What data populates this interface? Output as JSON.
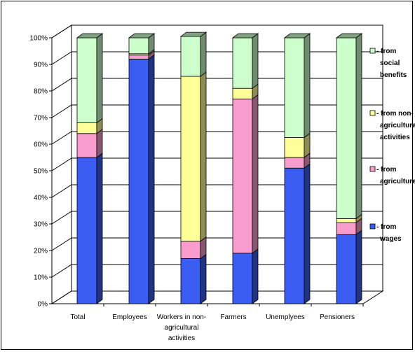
{
  "chart_data": {
    "type": "bar",
    "stacked": true,
    "percent": true,
    "three_d": true,
    "categories": [
      "Total",
      "Employees",
      "Workers in non-agricultural activities",
      "Farmers",
      "Unemplyees",
      "Pensioners"
    ],
    "category_label_lines": [
      [
        "Total"
      ],
      [
        "Employees"
      ],
      [
        "Workers in non-",
        "agricultural",
        "activities"
      ],
      [
        "Farmers"
      ],
      [
        "Unemplyees"
      ],
      [
        "Pensioners"
      ]
    ],
    "series": [
      {
        "name": "- from wages",
        "legend_lines": [
          "- from",
          "wages"
        ],
        "color": "#3a5cf0",
        "values": [
          55,
          92,
          17,
          19,
          51,
          26
        ]
      },
      {
        "name": "- from agriculture",
        "legend_lines": [
          "- from",
          "agriculture"
        ],
        "color": "#f79ccd",
        "values": [
          9,
          1.5,
          6.5,
          58,
          4,
          4.5
        ]
      },
      {
        "name": "- from non-agricultural activities",
        "legend_lines": [
          "- from non-",
          "agricultural",
          "activities"
        ],
        "color": "#ffff99",
        "values": [
          4,
          0.5,
          62,
          4,
          7.5,
          1.5
        ]
      },
      {
        "name": "- from social benefits",
        "legend_lines": [
          "- from",
          "social",
          "benefits"
        ],
        "color": "#ccffcc",
        "values": [
          32,
          6,
          15,
          19,
          37.5,
          68
        ]
      }
    ],
    "y_ticks": [
      "0%",
      "10%",
      "20%",
      "30%",
      "40%",
      "50%",
      "60%",
      "70%",
      "80%",
      "90%",
      "100%"
    ],
    "ylim": [
      0,
      100
    ],
    "grid": true,
    "legend_position": "right",
    "title": "",
    "xlabel": "",
    "ylabel": "",
    "colors": {
      "top_face": "#7fa27f",
      "plot_wall": "#ffffff",
      "grid": "#000000"
    }
  }
}
